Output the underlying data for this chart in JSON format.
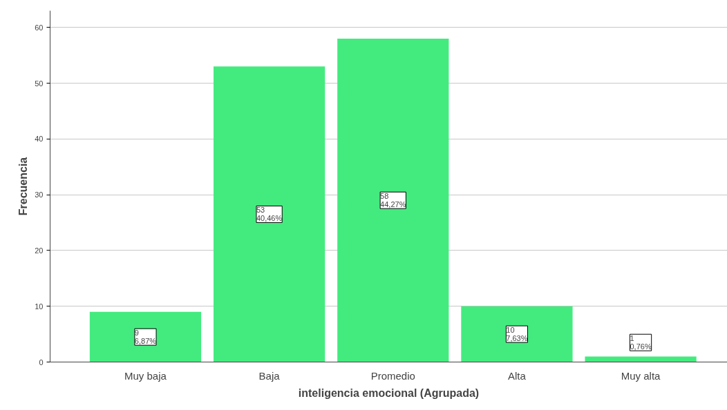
{
  "chart_data": {
    "type": "bar",
    "xlabel": "inteligencia emocional (Agrupada)",
    "ylabel": "Frecuencia",
    "categories": [
      "Muy baja",
      "Baja",
      "Promedio",
      "Alta",
      "Muy alta"
    ],
    "values": [
      9,
      53,
      58,
      10,
      1
    ],
    "value_labels": [
      "9\n6,87%",
      "53\n40,46%",
      "58\n44,27%",
      "10\n7,63%",
      "1\n0,76%"
    ],
    "color": "#43eb7f",
    "ylim": [
      0,
      63
    ],
    "yticks": [
      0,
      10,
      20,
      30,
      40,
      50,
      60
    ],
    "grid": "y"
  }
}
